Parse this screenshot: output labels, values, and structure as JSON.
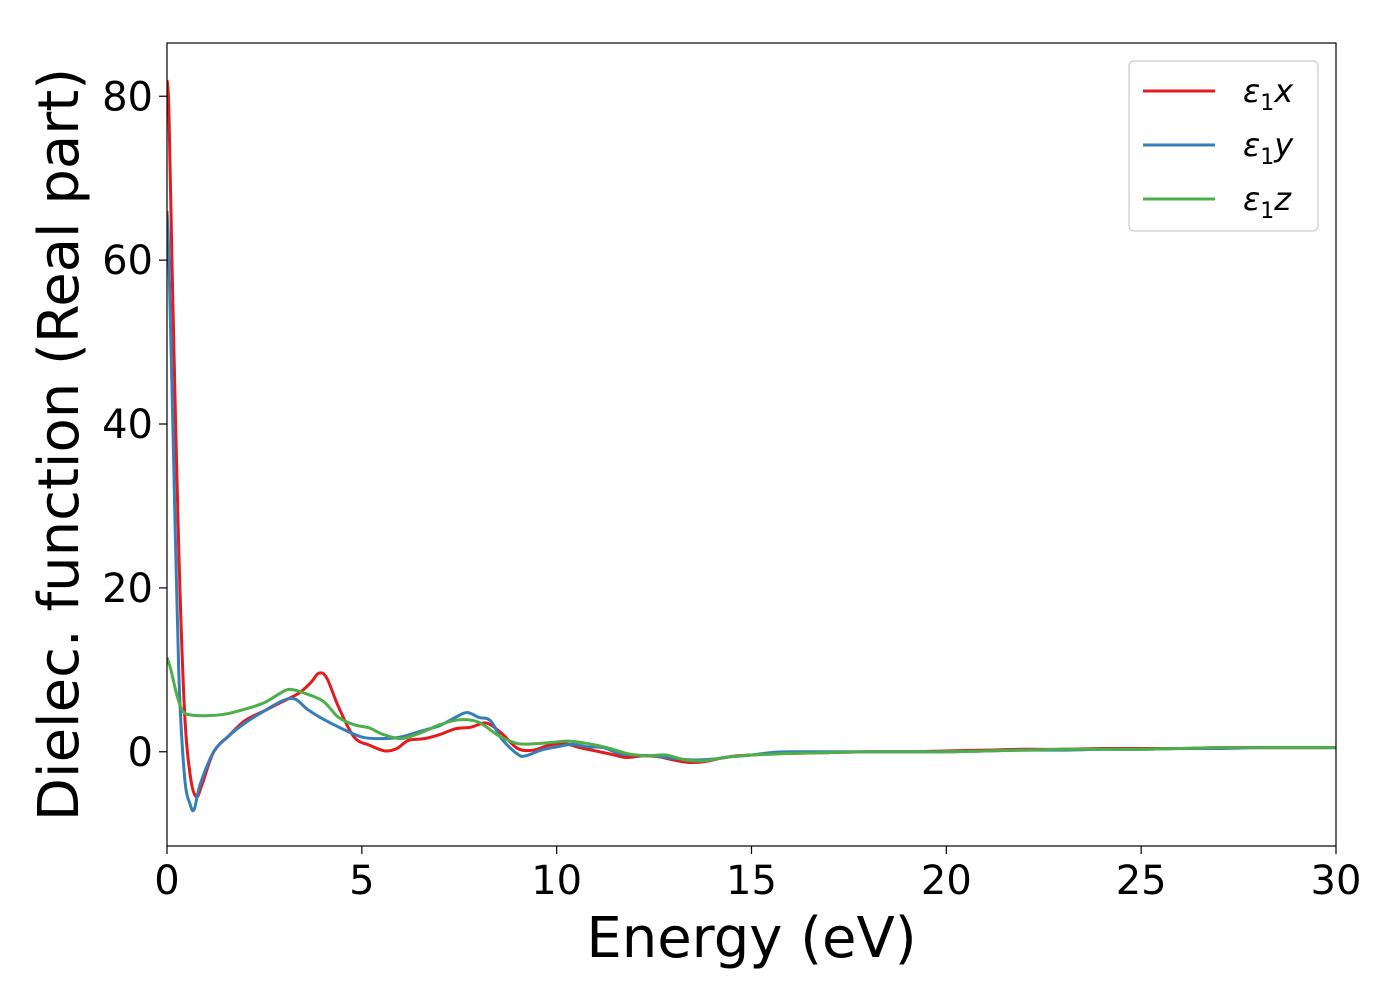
{
  "chart_data": {
    "type": "line",
    "title": "",
    "xlabel": "Energy (eV)",
    "ylabel": "Dielec. function (Real part)",
    "xlim": [
      0,
      30
    ],
    "ylim": [
      -11.5,
      86.5
    ],
    "xticks": [
      0,
      5,
      10,
      15,
      20,
      25,
      30
    ],
    "yticks": [
      0,
      20,
      40,
      60,
      80
    ],
    "grid": false,
    "legend_position": "top-right",
    "series": [
      {
        "name": "ε1x",
        "symbol": "ε",
        "sub": "1",
        "axis": "x",
        "color": "#e41a1c",
        "x": [
          0,
          0.05,
          0.15,
          0.3,
          0.45,
          0.6,
          0.75,
          0.9,
          1.2,
          1.6,
          2.0,
          2.5,
          3.0,
          3.4,
          3.7,
          3.9,
          4.1,
          4.4,
          4.8,
          5.2,
          5.6,
          5.9,
          6.2,
          6.6,
          7.0,
          7.4,
          7.8,
          8.2,
          8.6,
          9.0,
          9.4,
          9.8,
          10.2,
          10.6,
          11.0,
          11.4,
          11.8,
          12.2,
          12.6,
          13.0,
          13.4,
          13.8,
          14.2,
          14.6,
          15.0,
          15.5,
          16,
          17,
          18,
          19,
          20,
          21,
          22,
          23,
          24,
          25,
          26,
          27,
          28,
          29,
          30
        ],
        "y": [
          82,
          78,
          55,
          25,
          5,
          -3,
          -5.5,
          -4,
          0,
          2,
          3.8,
          5,
          6.2,
          7.2,
          8.5,
          9.6,
          9,
          5.5,
          1.8,
          0.8,
          0.1,
          0.4,
          1.4,
          1.6,
          2.1,
          2.8,
          3.0,
          3.5,
          2.2,
          0.4,
          0.2,
          0.8,
          1.0,
          0.5,
          0.1,
          -0.3,
          -0.7,
          -0.5,
          -0.6,
          -1.0,
          -1.3,
          -1.2,
          -0.8,
          -0.5,
          -0.4,
          -0.2,
          -0.2,
          -0.1,
          0,
          0,
          0.1,
          0.2,
          0.3,
          0.3,
          0.4,
          0.4,
          0.4,
          0.5,
          0.5,
          0.5,
          0.5
        ]
      },
      {
        "name": "ε1y",
        "symbol": "ε",
        "sub": "1",
        "axis": "y",
        "color": "#377eb8",
        "x": [
          0,
          0.05,
          0.15,
          0.3,
          0.45,
          0.6,
          0.7,
          0.85,
          1.2,
          1.6,
          2.0,
          2.5,
          3.0,
          3.3,
          3.6,
          4.0,
          4.5,
          5.0,
          5.5,
          6.0,
          6.5,
          7.0,
          7.4,
          7.7,
          8.0,
          8.3,
          8.6,
          9.0,
          9.2,
          9.6,
          10.0,
          10.4,
          10.8,
          11.2,
          11.6,
          12.0,
          12.5,
          13.0,
          13.5,
          14.0,
          14.5,
          15.0,
          15.5,
          16,
          17,
          18,
          19,
          20,
          21,
          22,
          23,
          24,
          25,
          26,
          27,
          28,
          29,
          30
        ],
        "y": [
          66,
          60,
          40,
          10,
          -3,
          -6.5,
          -7,
          -4,
          0,
          2,
          3.5,
          5,
          6.3,
          6.4,
          5.2,
          4.0,
          2.8,
          1.8,
          1.6,
          1.8,
          2.5,
          3.2,
          4.2,
          4.8,
          4.2,
          3.8,
          1.5,
          -0.3,
          -0.5,
          0.2,
          0.6,
          0.9,
          0.6,
          0.5,
          -0.2,
          -0.4,
          -0.5,
          -0.8,
          -1.0,
          -0.9,
          -0.6,
          -0.4,
          -0.1,
          0,
          0,
          0,
          0,
          0,
          0.1,
          0.2,
          0.2,
          0.3,
          0.3,
          0.4,
          0.4,
          0.5,
          0.5,
          0.5
        ]
      },
      {
        "name": "ε1z",
        "symbol": "ε",
        "sub": "1",
        "axis": "z",
        "color": "#4daf4a",
        "x": [
          0,
          0.1,
          0.25,
          0.4,
          0.6,
          1.0,
          1.5,
          2.0,
          2.5,
          3.0,
          3.2,
          3.5,
          4.0,
          4.4,
          4.8,
          5.2,
          5.5,
          6.0,
          6.5,
          7.0,
          7.5,
          8.0,
          8.5,
          9.0,
          9.5,
          10.0,
          10.3,
          10.8,
          11.3,
          11.8,
          12.3,
          12.8,
          13.3,
          13.8,
          14.3,
          15.0,
          15.5,
          16,
          17,
          18,
          19,
          20,
          21,
          22,
          23,
          24,
          25,
          26,
          27,
          28,
          29,
          30
        ],
        "y": [
          11.5,
          10,
          7,
          5,
          4.5,
          4.4,
          4.6,
          5.2,
          6.0,
          7.4,
          7.6,
          7.2,
          6.2,
          4.2,
          3.3,
          2.9,
          2.2,
          1.6,
          2.3,
          3.3,
          3.9,
          3.6,
          2.0,
          1.0,
          1.0,
          1.2,
          1.3,
          1.0,
          0.5,
          -0.2,
          -0.5,
          -0.4,
          -1.0,
          -1.1,
          -0.7,
          -0.4,
          -0.3,
          -0.2,
          -0.1,
          0,
          0,
          0,
          0.1,
          0.2,
          0.3,
          0.3,
          0.3,
          0.4,
          0.5,
          0.5,
          0.5,
          0.5
        ]
      }
    ]
  }
}
